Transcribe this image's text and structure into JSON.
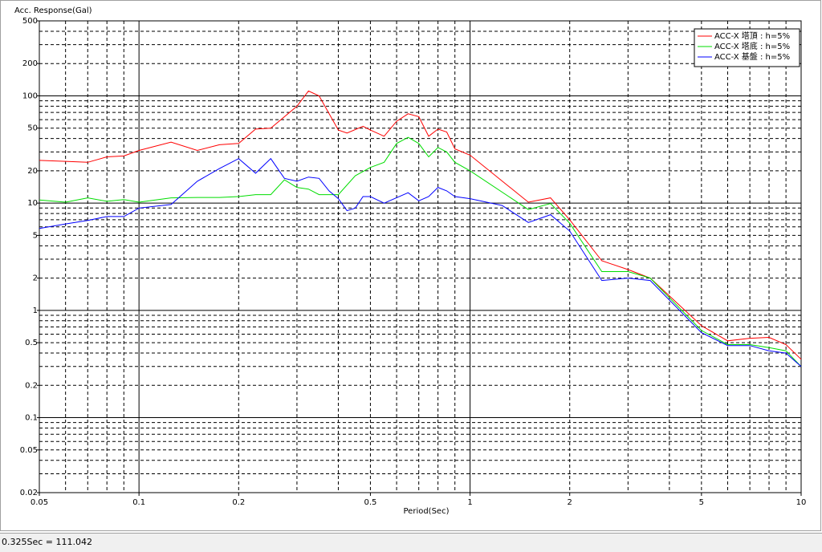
{
  "chart_data": {
    "type": "line",
    "y_label": "Acc. Response(Gal)",
    "x_label": "Period(Sec)",
    "xscale": "log",
    "yscale": "log",
    "xlim": [
      0.05,
      10
    ],
    "ylim": [
      0.02,
      500
    ],
    "xticks": [
      0.05,
      0.1,
      0.2,
      0.5,
      1,
      2,
      5,
      10
    ],
    "yticks": [
      500,
      200,
      100,
      50,
      20,
      10,
      5,
      2,
      1,
      0.5,
      0.2,
      0.1,
      0.05,
      0.02
    ],
    "xgrid": [
      0.06,
      0.07,
      0.08,
      0.09,
      0.1,
      0.2,
      0.3,
      0.4,
      0.5,
      0.6,
      0.7,
      0.8,
      0.9,
      1,
      2,
      3,
      4,
      5,
      6,
      7,
      8,
      9
    ],
    "ygrid": [
      0.03,
      0.04,
      0.05,
      0.06,
      0.07,
      0.08,
      0.09,
      0.1,
      0.2,
      0.3,
      0.4,
      0.5,
      0.6,
      0.7,
      0.8,
      0.9,
      1,
      2,
      3,
      4,
      5,
      6,
      7,
      8,
      9,
      10,
      20,
      30,
      40,
      50,
      60,
      70,
      80,
      90,
      100,
      200,
      300,
      400
    ],
    "legend": "upper right",
    "series": [
      {
        "name": "ACC-X 塔頂 : h=5%",
        "color": "#ff0000",
        "x": [
          0.05,
          0.06,
          0.07,
          0.08,
          0.09,
          0.1,
          0.125,
          0.15,
          0.175,
          0.2,
          0.225,
          0.25,
          0.3,
          0.325,
          0.35,
          0.4,
          0.425,
          0.475,
          0.5,
          0.55,
          0.6,
          0.65,
          0.7,
          0.75,
          0.8,
          0.85,
          0.9,
          1.0,
          1.5,
          1.75,
          2.0,
          2.5,
          3.0,
          3.5,
          5.0,
          6.0,
          7.0,
          8.0,
          9.0,
          10
        ],
        "values": [
          25,
          24.5,
          24,
          27,
          27.5,
          31,
          37,
          31,
          35,
          36,
          49,
          50,
          80,
          111.042,
          100,
          48,
          45,
          52,
          48,
          42,
          58,
          68,
          64,
          42,
          49,
          46,
          32,
          28,
          10.2,
          11.2,
          7,
          2.9,
          2.4,
          2.0,
          0.72,
          0.52,
          0.55,
          0.56,
          0.48,
          0.35
        ]
      },
      {
        "name": "ACC-X 塔底 : h=5%",
        "color": "#00dd00",
        "x": [
          0.05,
          0.06,
          0.07,
          0.08,
          0.09,
          0.1,
          0.125,
          0.15,
          0.175,
          0.2,
          0.225,
          0.25,
          0.275,
          0.3,
          0.325,
          0.35,
          0.4,
          0.45,
          0.5,
          0.55,
          0.6,
          0.65,
          0.7,
          0.75,
          0.8,
          0.85,
          0.9,
          1.0,
          1.5,
          1.75,
          2.0,
          2.5,
          3.0,
          3.5,
          5.0,
          6.0,
          7.0,
          8.0,
          9.0,
          10
        ],
        "values": [
          10.7,
          10.2,
          11.2,
          10.4,
          10.8,
          10.2,
          11.2,
          11.3,
          11.3,
          11.5,
          12,
          12,
          16.5,
          14,
          13.5,
          12,
          12,
          18,
          21.5,
          24,
          36,
          41,
          36,
          27,
          33,
          30,
          24,
          20,
          8.7,
          9.9,
          6.5,
          2.3,
          2.3,
          2.0,
          0.65,
          0.48,
          0.48,
          0.45,
          0.42,
          0.3
        ]
      },
      {
        "name": "ACC-X 基盤 : h=5%",
        "color": "#0000ff",
        "x": [
          0.05,
          0.06,
          0.07,
          0.08,
          0.09,
          0.1,
          0.125,
          0.15,
          0.175,
          0.2,
          0.225,
          0.25,
          0.275,
          0.3,
          0.325,
          0.35,
          0.375,
          0.4,
          0.425,
          0.45,
          0.475,
          0.5,
          0.55,
          0.65,
          0.7,
          0.75,
          0.8,
          0.85,
          0.9,
          1.0,
          1.25,
          1.5,
          1.75,
          2.0,
          2.5,
          3.0,
          3.5,
          5.0,
          6.0,
          7.0,
          8.0,
          9.0,
          10
        ],
        "values": [
          5.8,
          6.4,
          6.9,
          7.5,
          7.5,
          9.0,
          9.7,
          16,
          21,
          26,
          19,
          26,
          17,
          16,
          17.5,
          17,
          13,
          11,
          8.5,
          9,
          11.5,
          11.5,
          10,
          12.5,
          10.5,
          11.5,
          14,
          13,
          11.5,
          11,
          9.5,
          6.6,
          7.8,
          5.5,
          1.9,
          2.0,
          1.9,
          0.62,
          0.47,
          0.47,
          0.42,
          0.4,
          0.3
        ]
      }
    ]
  },
  "status_bar": {
    "text": "0.325Sec = 111.042"
  }
}
